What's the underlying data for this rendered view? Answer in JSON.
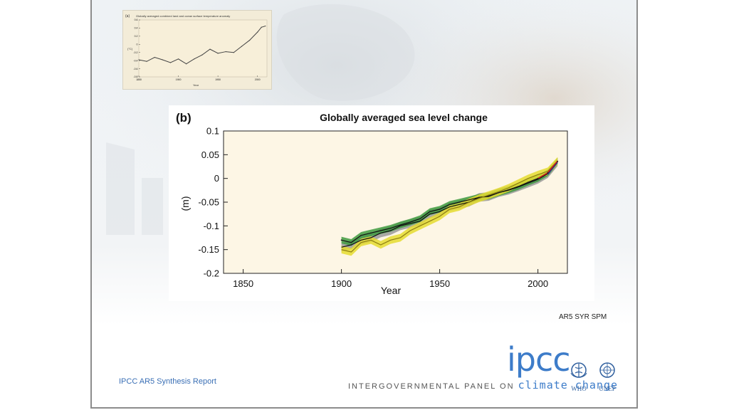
{
  "slide": {
    "credit": "AR5 SYR SPM",
    "report_label": "IPCC AR5 Synthesis Report",
    "logo": {
      "word": "ipcc",
      "tagline_prefix": "INTERGOVERNMENTAL PANEL ON",
      "tagline_suffix": "climate change",
      "who_label": "WHO",
      "unep_label": "UNEP"
    }
  },
  "chart_data": [
    {
      "type": "line",
      "panel_label": "(a)",
      "title": "Globally averaged combined land and ocean surface temperature anomaly",
      "xlabel": "Year",
      "ylabel": "(°C)",
      "xlim": [
        1850,
        2012
      ],
      "ylim": [
        -0.8,
        0.6
      ],
      "x_ticks": [
        1850,
        1900,
        1950,
        2000
      ],
      "y_ticks": [
        -0.8,
        -0.6,
        -0.4,
        -0.2,
        0,
        0.2,
        0.4,
        0.6
      ],
      "grid": false,
      "colors": {
        "background": "#f3ecd8",
        "line": "#444444"
      },
      "x": [
        1850,
        1860,
        1870,
        1880,
        1890,
        1900,
        1910,
        1920,
        1930,
        1940,
        1950,
        1960,
        1970,
        1980,
        1990,
        2000,
        2005,
        2010
      ],
      "values": [
        -0.38,
        -0.42,
        -0.32,
        -0.38,
        -0.45,
        -0.36,
        -0.48,
        -0.36,
        -0.26,
        -0.12,
        -0.22,
        -0.18,
        -0.2,
        -0.05,
        0.1,
        0.3,
        0.42,
        0.45
      ]
    },
    {
      "type": "line",
      "panel_label": "(b)",
      "title": "Globally averaged sea level change",
      "xlabel": "Year",
      "ylabel": "(m)",
      "xlim": [
        1840,
        2015
      ],
      "ylim": [
        -0.2,
        0.1
      ],
      "x_ticks": [
        1850,
        1900,
        1950,
        2000
      ],
      "y_ticks": [
        0.1,
        0.05,
        0,
        -0.05,
        -0.1,
        -0.15,
        -0.2
      ],
      "grid": false,
      "colors": {
        "background": "#fdf6e5",
        "band_grey": "#9a9a9a",
        "band_green": "#3f9a3f",
        "band_yellow": "#e5dc30",
        "line_black": "#111111",
        "line_red": "#cc2222",
        "line_blue": "#2244aa"
      },
      "x": [
        1900,
        1905,
        1910,
        1915,
        1920,
        1925,
        1930,
        1935,
        1940,
        1945,
        1950,
        1955,
        1960,
        1965,
        1970,
        1975,
        1980,
        1985,
        1990,
        1995,
        2000,
        2005,
        2010
      ],
      "series": [
        {
          "values": [
            -0.145,
            -0.14,
            -0.13,
            -0.125,
            -0.115,
            -0.11,
            -0.1,
            -0.095,
            -0.09,
            -0.075,
            -0.07,
            -0.06,
            -0.055,
            -0.05,
            -0.04,
            -0.038,
            -0.03,
            -0.025,
            -0.018,
            -0.01,
            -0.002,
            0.01,
            0.035
          ]
        },
        {
          "values": [
            -0.13,
            -0.135,
            -0.12,
            -0.115,
            -0.11,
            -0.105,
            -0.098,
            -0.092,
            -0.085,
            -0.07,
            -0.065,
            -0.055,
            -0.05,
            -0.045,
            -0.04,
            -0.037,
            -0.03,
            -0.024,
            -0.017,
            -0.008,
            0.0,
            0.012,
            0.036
          ]
        },
        {
          "values": [
            -0.15,
            -0.155,
            -0.135,
            -0.13,
            -0.14,
            -0.13,
            -0.125,
            -0.11,
            -0.1,
            -0.09,
            -0.08,
            -0.065,
            -0.06,
            -0.05,
            -0.042,
            -0.035,
            -0.028,
            -0.02,
            -0.01,
            0.0,
            0.008,
            0.015,
            0.037
          ]
        }
      ]
    }
  ]
}
